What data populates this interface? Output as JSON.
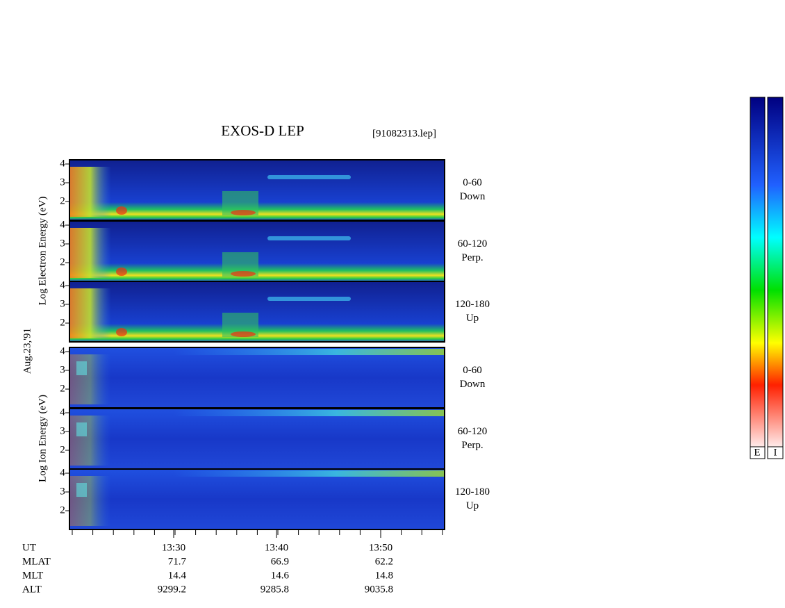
{
  "header": {
    "title": "EXOS-D LEP",
    "file": "[91082313.lep]"
  },
  "date": "Aug.23,'91",
  "groups": [
    {
      "ylabel": "Log  Electron  Energy (eV)",
      "panels": [
        {
          "angle": "0-60",
          "direction": "Down"
        },
        {
          "angle": "60-120",
          "direction": "Perp."
        },
        {
          "angle": "120-180",
          "direction": "Up"
        }
      ]
    },
    {
      "ylabel": "Log  Ion  Energy (eV)",
      "panels": [
        {
          "angle": "0-60",
          "direction": "Down"
        },
        {
          "angle": "60-120",
          "direction": "Perp."
        },
        {
          "angle": "120-180",
          "direction": "Up"
        }
      ]
    }
  ],
  "yticks": [
    2,
    3,
    4
  ],
  "time_axis": {
    "label": "UT",
    "ticks": [
      "13:30",
      "13:40",
      "13:50"
    ]
  },
  "orbit": [
    {
      "label": "MLAT",
      "values": [
        71.7,
        66.9,
        62.2
      ]
    },
    {
      "label": "MLT",
      "values": [
        14.4,
        14.6,
        14.8
      ]
    },
    {
      "label": "ALT",
      "values": [
        9299.2,
        9285.8,
        9035.8
      ]
    }
  ],
  "colorbar": {
    "labels": [
      "E",
      "I"
    ]
  }
}
